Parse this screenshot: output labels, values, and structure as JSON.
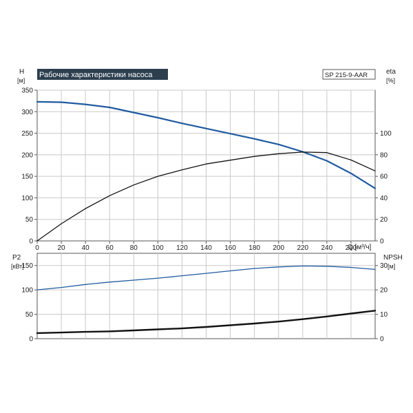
{
  "chart_data": [
    {
      "type": "line",
      "title": "Рабочие характеристики насоса",
      "model_label": "SP 215-9-AAR",
      "y_left_label": "H",
      "y_left_unit": "[м]",
      "y_right_label": "eta",
      "y_right_unit": "[%]",
      "xlabel": "Q [м³/ч]",
      "xlim": [
        0,
        280
      ],
      "x_ticks": [
        0,
        20,
        40,
        60,
        80,
        100,
        120,
        140,
        160,
        180,
        200,
        220,
        240,
        260
      ],
      "ylim_left": [
        0,
        350
      ],
      "y_left_ticks": [
        0,
        50,
        100,
        150,
        200,
        250,
        300,
        350
      ],
      "ylim_right": [
        0,
        140
      ],
      "y_right_ticks": [
        0,
        20,
        40,
        60,
        80,
        100
      ],
      "grid": true,
      "series": [
        {
          "axis": "left",
          "color": "#1f5aa0",
          "x": [
            0,
            20,
            40,
            60,
            80,
            100,
            120,
            140,
            160,
            180,
            200,
            220,
            240,
            260,
            280
          ],
          "values": [
            323,
            322,
            317,
            310,
            298,
            286,
            273,
            261,
            249,
            237,
            224,
            207,
            186,
            157,
            122
          ]
        },
        {
          "axis": "right",
          "color": "#111111",
          "x": [
            0,
            20,
            40,
            60,
            80,
            100,
            120,
            140,
            160,
            180,
            200,
            220,
            240,
            260,
            280
          ],
          "values": [
            0,
            16,
            30,
            42,
            52,
            60,
            66,
            71.5,
            75,
            78.5,
            81,
            82.5,
            82,
            75.2,
            65
          ]
        }
      ]
    },
    {
      "type": "line",
      "y_left_label": "P2",
      "y_left_unit": "[кВт]",
      "y_right_label": "NPSH",
      "y_right_unit": "[м]",
      "xlim": [
        0,
        280
      ],
      "ylim_left": [
        0,
        175
      ],
      "y_left_ticks": [
        0,
        50,
        100,
        150
      ],
      "ylim_right": [
        0,
        35
      ],
      "y_right_ticks": [
        0,
        10,
        20,
        30
      ],
      "grid": true,
      "series": [
        {
          "axis": "left",
          "color": "#1f5aa0",
          "x": [
            0,
            20,
            40,
            60,
            80,
            100,
            120,
            140,
            160,
            180,
            200,
            220,
            240,
            260,
            280
          ],
          "values": [
            100,
            105,
            111,
            116,
            120,
            124,
            129,
            134,
            139,
            144,
            147,
            149,
            148.5,
            146,
            142
          ]
        },
        {
          "axis": "right",
          "color": "#111111",
          "x": [
            0,
            20,
            40,
            60,
            80,
            100,
            120,
            140,
            160,
            180,
            200,
            220,
            240,
            260,
            280
          ],
          "values": [
            2.3,
            2.5,
            2.8,
            3.0,
            3.4,
            3.8,
            4.2,
            4.8,
            5.5,
            6.2,
            7.0,
            8.0,
            9.1,
            10.3,
            11.5
          ]
        }
      ]
    }
  ]
}
